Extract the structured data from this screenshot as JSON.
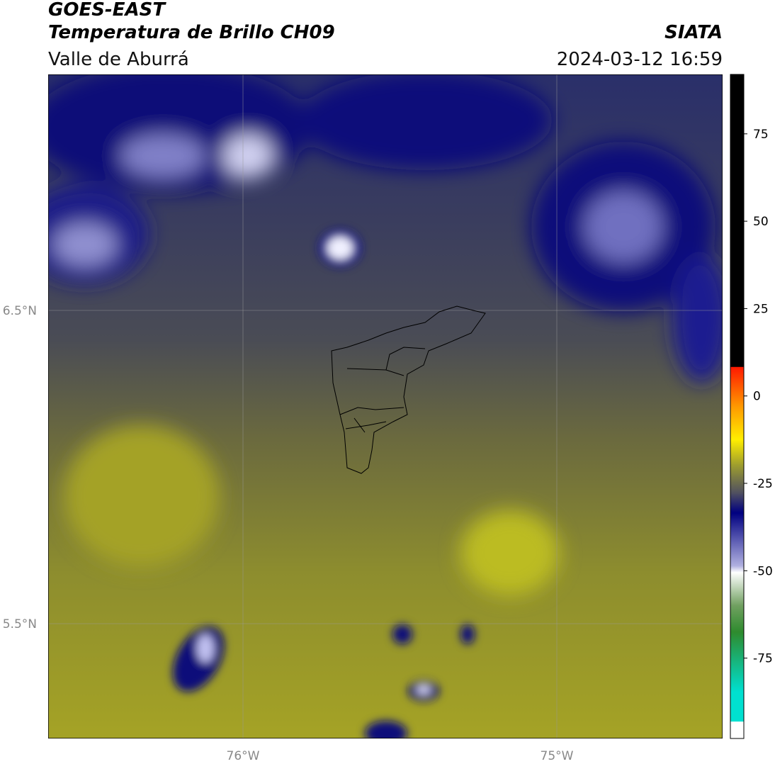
{
  "header": {
    "title": "GOES-EAST",
    "subtitle": "Temperatura de Brillo CH09",
    "region": "Valle de Aburrá",
    "source": "SIATA",
    "datetime": "2024-03-12 16:59"
  },
  "map": {
    "lat_labels": [
      "6.5°N",
      "5.5°N"
    ],
    "lon_labels": [
      "76°W",
      "75°W"
    ]
  },
  "colorbar": {
    "clim": [
      -98,
      92
    ],
    "ticks": [
      75,
      50,
      25,
      0,
      -25,
      -50,
      -75
    ]
  }
}
